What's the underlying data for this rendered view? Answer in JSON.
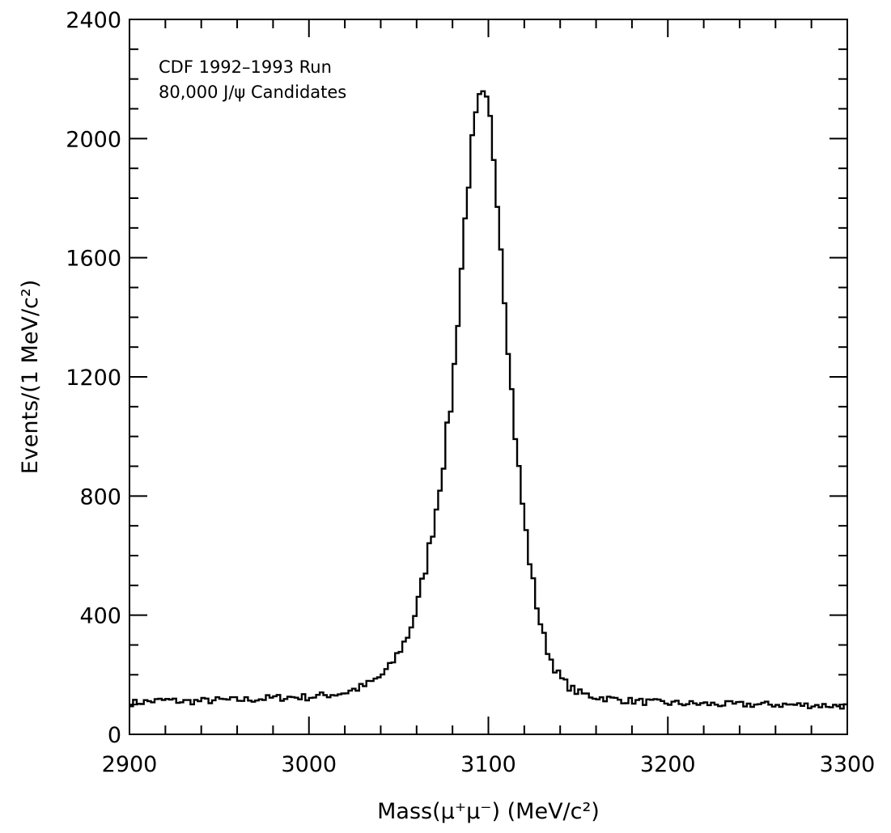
{
  "chart_data": {
    "type": "line",
    "style": "step-histogram",
    "annotations": [
      "CDF 1992–1993 Run",
      "80,000 J/ψ Candidates"
    ],
    "xlabel": "Mass(μ⁺μ⁻) (MeV/c²)",
    "ylabel": "Events/(1 MeV/c²)",
    "xlim": [
      2900,
      3300
    ],
    "ylim": [
      0,
      2400
    ],
    "x_ticks": [
      2900,
      3000,
      3100,
      3200,
      3300
    ],
    "x_tick_labels": [
      "2900",
      "3000",
      "3100",
      "3200",
      "3300"
    ],
    "y_ticks": [
      0,
      400,
      800,
      1200,
      1600,
      2000,
      2400
    ],
    "y_tick_labels": [
      "0",
      "400",
      "800",
      "1200",
      "1600",
      "2000",
      "2400"
    ],
    "x_minor_step": 20,
    "y_minor_step": 100,
    "grid": false,
    "legend": false,
    "bin_width": 2,
    "series": [
      {
        "x": [
          2900,
          2910,
          2920,
          2930,
          2940,
          2950,
          2960,
          2970,
          2980,
          2990,
          3000,
          3010,
          3020,
          3030,
          3035,
          3040,
          3045,
          3050,
          3055,
          3060,
          3065,
          3070,
          3075,
          3080,
          3083,
          3086,
          3089,
          3092,
          3095,
          3097,
          3099,
          3101,
          3104,
          3107,
          3110,
          3113,
          3116,
          3120,
          3124,
          3128,
          3132,
          3136,
          3140,
          3145,
          3150,
          3160,
          3170,
          3180,
          3190,
          3200,
          3220,
          3240,
          3260,
          3280,
          3300
        ],
        "values": [
          105,
          110,
          115,
          110,
          112,
          115,
          115,
          118,
          122,
          125,
          125,
          132,
          140,
          160,
          175,
          195,
          225,
          275,
          330,
          420,
          560,
          720,
          920,
          1150,
          1400,
          1650,
          1870,
          2020,
          2110,
          2120,
          2100,
          2050,
          1900,
          1650,
          1400,
          1150,
          940,
          720,
          540,
          400,
          300,
          235,
          190,
          160,
          140,
          125,
          118,
          112,
          108,
          105,
          102,
          100,
          100,
          98,
          95
        ]
      }
    ]
  }
}
